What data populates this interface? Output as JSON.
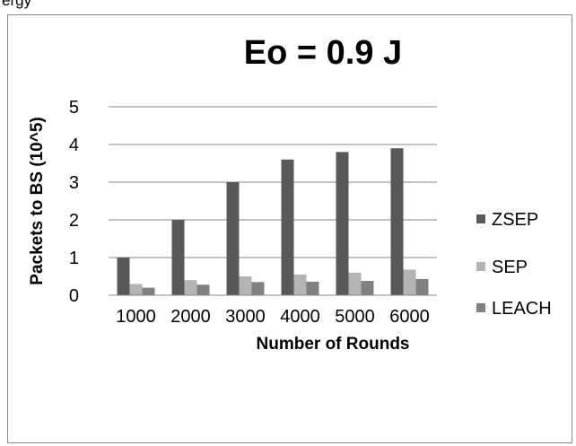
{
  "top_fragment": "ergy",
  "chart_data": {
    "type": "bar",
    "title": "Eo = 0.9 J",
    "xlabel": "Number of Rounds",
    "ylabel": "Packets to BS (10^5)",
    "categories": [
      "1000",
      "2000",
      "3000",
      "4000",
      "5000",
      "6000"
    ],
    "ylim": [
      0,
      5
    ],
    "yticks": [
      0,
      1,
      2,
      3,
      4,
      5
    ],
    "grid": true,
    "legend_position": "right",
    "series": [
      {
        "name": "ZSEP",
        "values": [
          1.0,
          2.0,
          3.0,
          3.6,
          3.8,
          3.9
        ],
        "color": "#595959"
      },
      {
        "name": "SEP",
        "values": [
          0.3,
          0.4,
          0.5,
          0.55,
          0.6,
          0.68
        ],
        "color": "#b3b3b3"
      },
      {
        "name": "LEACH",
        "values": [
          0.2,
          0.28,
          0.35,
          0.36,
          0.38,
          0.43
        ],
        "color": "#808080"
      }
    ]
  }
}
